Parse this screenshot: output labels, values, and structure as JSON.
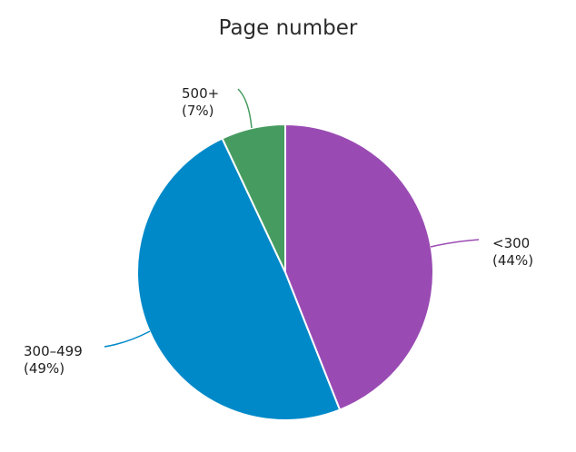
{
  "chart_data": {
    "type": "pie",
    "title": "Page number",
    "categories": [
      "<300",
      "300–499",
      "500+"
    ],
    "values": [
      44,
      49,
      7
    ],
    "unit": "%",
    "colors": [
      "#9a4bb3",
      "#0089c8",
      "#469c60"
    ],
    "labels": [
      {
        "name": "<300",
        "pct": "(44%)"
      },
      {
        "name": "300–499",
        "pct": "(49%)"
      },
      {
        "name": "500+",
        "pct": "(7%)"
      }
    ],
    "legend": "none (leader-line labels)"
  }
}
